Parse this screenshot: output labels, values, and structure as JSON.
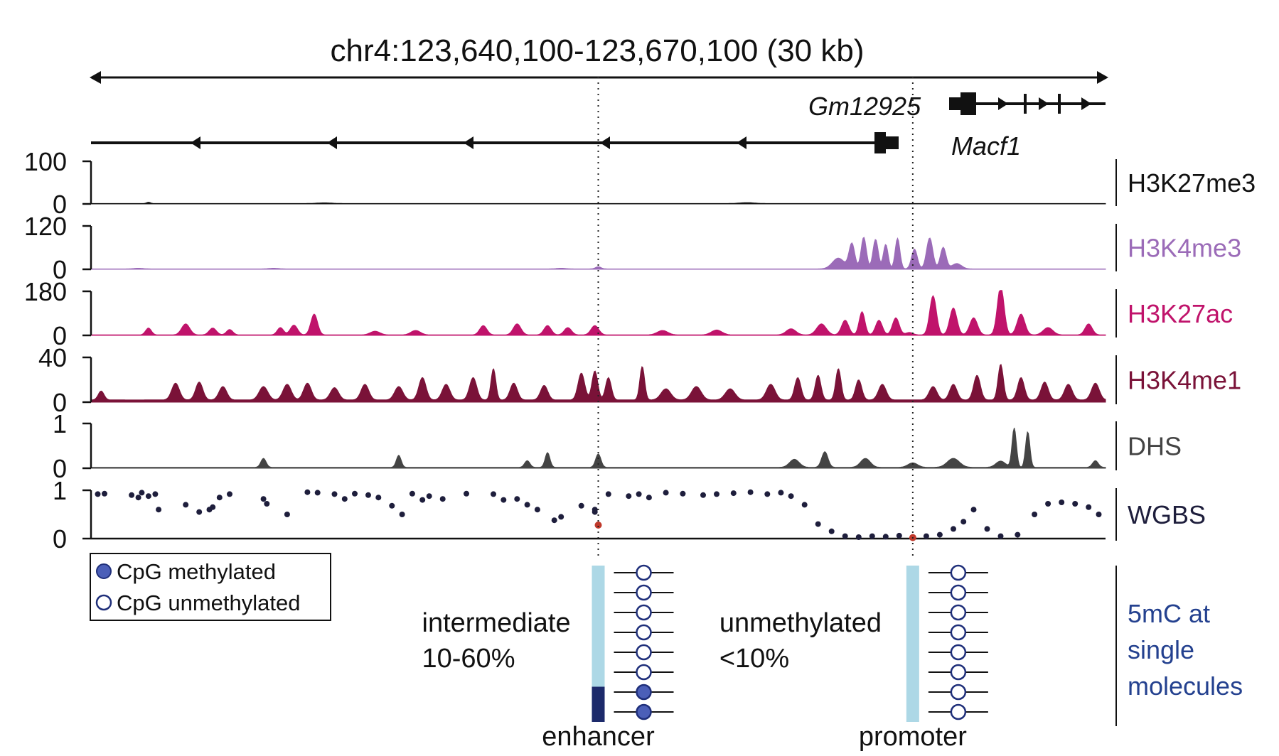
{
  "figure": {
    "title": "chr4:123,640,100-123,670,100 (30 kb)",
    "genes": [
      {
        "name": "Gm12925",
        "strand": "-"
      },
      {
        "name": "Macf1",
        "strand": "+"
      }
    ]
  },
  "chart_data": {
    "type": "area",
    "title": "chr4:123,640,100-123,670,100 (30 kb)",
    "x_range": [
      123640100,
      123670100
    ],
    "x_unit": "bp (chr4)",
    "markers": [
      {
        "name": "enhancer",
        "x": 123655100
      },
      {
        "name": "promoter",
        "x": 123664400
      }
    ],
    "tracks": [
      {
        "name": "H3K27me3",
        "color": "#111111",
        "ylim": [
          0,
          100
        ],
        "tick_labels": [
          "100",
          "0"
        ],
        "peaks": [
          [
            123641800,
            3,
            80
          ],
          [
            123647000,
            1.5,
            300
          ],
          [
            123659500,
            2,
            300
          ]
        ],
        "baseline": 1
      },
      {
        "name": "H3K4me3",
        "color": "#9b6bb8",
        "ylim": [
          0,
          120
        ],
        "tick_labels": [
          "120",
          "0"
        ],
        "peaks": [
          [
            123641500,
            2,
            200
          ],
          [
            123645500,
            2,
            200
          ],
          [
            123654000,
            2,
            200
          ],
          [
            123655100,
            6,
            120
          ],
          [
            123662600,
            70,
            120
          ],
          [
            123662950,
            88,
            110
          ],
          [
            123663300,
            82,
            110
          ],
          [
            123663600,
            68,
            100
          ],
          [
            123663950,
            85,
            100
          ],
          [
            123664450,
            55,
            120
          ],
          [
            123664900,
            86,
            130
          ],
          [
            123665300,
            60,
            120
          ],
          [
            123662200,
            30,
            250
          ],
          [
            123665700,
            15,
            200
          ]
        ],
        "baseline": 1
      },
      {
        "name": "H3K27ac",
        "color": "#c0136b",
        "ylim": [
          0,
          180
        ],
        "tick_labels": [
          "180",
          "0"
        ],
        "peaks": [
          [
            123641800,
            28,
            120
          ],
          [
            123642900,
            45,
            170
          ],
          [
            123643700,
            28,
            150
          ],
          [
            123644200,
            22,
            130
          ],
          [
            123645700,
            30,
            130
          ],
          [
            123646100,
            40,
            150
          ],
          [
            123646700,
            85,
            140
          ],
          [
            123648500,
            15,
            200
          ],
          [
            123649700,
            18,
            200
          ],
          [
            123651700,
            38,
            150
          ],
          [
            123652700,
            45,
            160
          ],
          [
            123653600,
            38,
            150
          ],
          [
            123654200,
            30,
            150
          ],
          [
            123655000,
            38,
            160
          ],
          [
            123657000,
            18,
            220
          ],
          [
            123658600,
            20,
            220
          ],
          [
            123660800,
            25,
            200
          ],
          [
            123661700,
            45,
            200
          ],
          [
            123662400,
            60,
            150
          ],
          [
            123662900,
            95,
            120
          ],
          [
            123663400,
            60,
            140
          ],
          [
            123663900,
            70,
            140
          ],
          [
            123664300,
            10,
            150
          ],
          [
            123665000,
            160,
            140
          ],
          [
            123665600,
            110,
            150
          ],
          [
            123666200,
            70,
            160
          ],
          [
            123667000,
            200,
            140
          ],
          [
            123667600,
            85,
            160
          ],
          [
            123668400,
            30,
            200
          ],
          [
            123669600,
            45,
            150
          ]
        ],
        "baseline": 2
      },
      {
        "name": "H3K4me1",
        "color": "#7a1238",
        "ylim": [
          0,
          40
        ],
        "tick_labels": [
          "40",
          "0"
        ],
        "peaks": [
          [
            123640400,
            8,
            120
          ],
          [
            123642600,
            15,
            160
          ],
          [
            123643300,
            16,
            150
          ],
          [
            123644000,
            12,
            160
          ],
          [
            123645200,
            12,
            180
          ],
          [
            123645900,
            14,
            170
          ],
          [
            123646500,
            15,
            160
          ],
          [
            123647300,
            11,
            170
          ],
          [
            123648200,
            14,
            160
          ],
          [
            123649200,
            12,
            170
          ],
          [
            123649900,
            20,
            150
          ],
          [
            123650600,
            14,
            160
          ],
          [
            123651400,
            20,
            150
          ],
          [
            123652000,
            28,
            100
          ],
          [
            123652600,
            15,
            150
          ],
          [
            123653500,
            13,
            150
          ],
          [
            123654600,
            24,
            140
          ],
          [
            123655000,
            26,
            120
          ],
          [
            123655400,
            20,
            120
          ],
          [
            123656400,
            30,
            100
          ],
          [
            123657100,
            10,
            200
          ],
          [
            123658000,
            12,
            200
          ],
          [
            123659000,
            10,
            200
          ],
          [
            123660200,
            14,
            180
          ],
          [
            123661000,
            20,
            130
          ],
          [
            123661600,
            22,
            120
          ],
          [
            123662200,
            28,
            110
          ],
          [
            123662800,
            18,
            130
          ],
          [
            123663500,
            14,
            160
          ],
          [
            123665000,
            12,
            160
          ],
          [
            123665600,
            14,
            150
          ],
          [
            123666300,
            22,
            140
          ],
          [
            123667000,
            32,
            110
          ],
          [
            123667600,
            20,
            140
          ],
          [
            123668300,
            16,
            150
          ],
          [
            123669000,
            14,
            160
          ],
          [
            123669800,
            15,
            160
          ]
        ],
        "baseline": 2
      },
      {
        "name": "DHS",
        "color": "#444444",
        "ylim": [
          0,
          1
        ],
        "tick_labels": [
          "1",
          "0"
        ],
        "peaks": [
          [
            123645200,
            0.2,
            110
          ],
          [
            123649200,
            0.27,
            100
          ],
          [
            123653000,
            0.15,
            110
          ],
          [
            123653600,
            0.33,
            100
          ],
          [
            123655100,
            0.3,
            110
          ],
          [
            123660900,
            0.18,
            200
          ],
          [
            123661800,
            0.35,
            130
          ],
          [
            123663000,
            0.2,
            200
          ],
          [
            123664400,
            0.1,
            200
          ],
          [
            123665600,
            0.2,
            250
          ],
          [
            123667000,
            0.14,
            200
          ],
          [
            123667400,
            0.88,
            90
          ],
          [
            123667800,
            0.8,
            90
          ],
          [
            123669800,
            0.15,
            120
          ]
        ],
        "baseline": 0.02
      }
    ],
    "wgbs": {
      "name": "WGBS",
      "color": "#1e1e3c",
      "highlight_color": "#c0392b",
      "ylim": [
        0,
        1
      ],
      "tick_labels": [
        "1",
        "0"
      ],
      "points": [
        [
          123640300,
          0.92
        ],
        [
          123640500,
          0.93
        ],
        [
          123641300,
          0.9
        ],
        [
          123641500,
          0.85
        ],
        [
          123641600,
          0.95
        ],
        [
          123641800,
          0.88
        ],
        [
          123642100,
          0.6
        ],
        [
          123642000,
          0.92
        ],
        [
          123642900,
          0.7
        ],
        [
          123643300,
          0.55
        ],
        [
          123643700,
          0.65
        ],
        [
          123643900,
          0.85
        ],
        [
          123643600,
          0.6
        ],
        [
          123644200,
          0.92
        ],
        [
          123645200,
          0.82
        ],
        [
          123645300,
          0.72
        ],
        [
          123645900,
          0.5
        ],
        [
          123646500,
          0.96
        ],
        [
          123646800,
          0.95
        ],
        [
          123647300,
          0.92
        ],
        [
          123647600,
          0.82
        ],
        [
          123647900,
          0.93
        ],
        [
          123648300,
          0.9
        ],
        [
          123648600,
          0.85
        ],
        [
          123649000,
          0.68
        ],
        [
          123649300,
          0.5
        ],
        [
          123649600,
          0.93
        ],
        [
          123649900,
          0.8
        ],
        [
          123650100,
          0.88
        ],
        [
          123650500,
          0.82
        ],
        [
          123651200,
          0.93
        ],
        [
          123652000,
          0.92
        ],
        [
          123652300,
          0.8
        ],
        [
          123652700,
          0.82
        ],
        [
          123653000,
          0.7
        ],
        [
          123653300,
          0.6
        ],
        [
          123653800,
          0.38
        ],
        [
          123654000,
          0.45
        ],
        [
          123654600,
          0.68
        ],
        [
          123655000,
          0.6
        ],
        [
          123655100,
          0.28
        ],
        [
          123655000,
          0.55
        ],
        [
          123655400,
          0.92
        ],
        [
          123656000,
          0.88
        ],
        [
          123656300,
          0.92
        ],
        [
          123656600,
          0.85
        ],
        [
          123657100,
          0.95
        ],
        [
          123657600,
          0.93
        ],
        [
          123658200,
          0.9
        ],
        [
          123658600,
          0.92
        ],
        [
          123659100,
          0.94
        ],
        [
          123659600,
          0.96
        ],
        [
          123660100,
          0.92
        ],
        [
          123660500,
          0.95
        ],
        [
          123660800,
          0.88
        ],
        [
          123661200,
          0.7
        ],
        [
          123661600,
          0.3
        ],
        [
          123662000,
          0.15
        ],
        [
          123662400,
          0.05
        ],
        [
          123662800,
          0.03
        ],
        [
          123663200,
          0.05
        ],
        [
          123663600,
          0.04
        ],
        [
          123664000,
          0.06
        ],
        [
          123664400,
          0.02
        ],
        [
          123664800,
          0.05
        ],
        [
          123665200,
          0.08
        ],
        [
          123665600,
          0.2
        ],
        [
          123665900,
          0.35
        ],
        [
          123666200,
          0.6
        ],
        [
          123666600,
          0.2
        ],
        [
          123667000,
          0.05
        ],
        [
          123667500,
          0.08
        ],
        [
          123668000,
          0.5
        ],
        [
          123668400,
          0.72
        ],
        [
          123668800,
          0.75
        ],
        [
          123669200,
          0.72
        ],
        [
          123669600,
          0.65
        ],
        [
          123669900,
          0.5
        ]
      ],
      "highlight_points": [
        [
          123655100,
          0.28
        ],
        [
          123664400,
          0.02
        ]
      ]
    },
    "single_molecules": {
      "label": "5mC at single molecules",
      "legend": {
        "methylated": "CpG methylated",
        "unmethylated": "CpG unmethylated"
      },
      "sites": [
        {
          "name": "enhancer",
          "state_line1": "intermediate",
          "state_line2": "10-60%",
          "molecules": [
            0,
            0,
            0,
            0,
            0,
            0,
            1,
            1
          ],
          "bar_fraction_methylated": 0.25
        },
        {
          "name": "promoter",
          "state_line1": "unmethylated",
          "state_line2": "<10%",
          "molecules": [
            0,
            0,
            0,
            0,
            0,
            0,
            0,
            0
          ],
          "bar_fraction_methylated": 0
        }
      ]
    }
  }
}
